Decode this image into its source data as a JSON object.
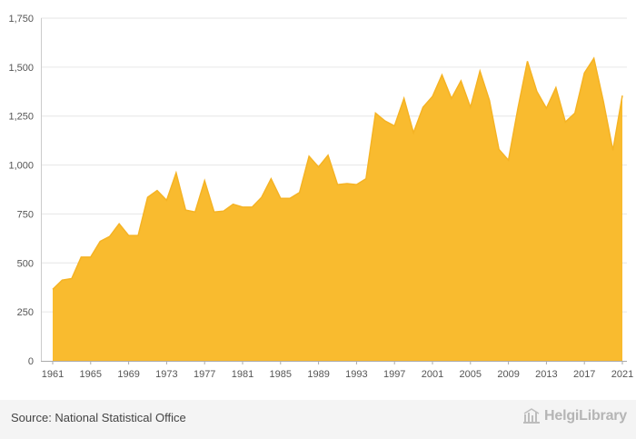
{
  "chart_data": {
    "type": "area",
    "x": [
      1961,
      1962,
      1963,
      1964,
      1965,
      1966,
      1967,
      1968,
      1969,
      1970,
      1971,
      1972,
      1973,
      1974,
      1975,
      1976,
      1977,
      1978,
      1979,
      1980,
      1981,
      1982,
      1983,
      1984,
      1985,
      1986,
      1987,
      1988,
      1989,
      1990,
      1991,
      1992,
      1993,
      1994,
      1995,
      1996,
      1997,
      1998,
      1999,
      2000,
      2001,
      2002,
      2003,
      2004,
      2005,
      2006,
      2007,
      2008,
      2009,
      2010,
      2011,
      2012,
      2013,
      2014,
      2015,
      2016,
      2017,
      2018,
      2019,
      2020,
      2021
    ],
    "values": [
      365,
      412,
      420,
      530,
      530,
      610,
      635,
      700,
      640,
      640,
      835,
      870,
      820,
      960,
      770,
      760,
      920,
      760,
      765,
      800,
      785,
      785,
      835,
      930,
      830,
      830,
      860,
      1045,
      990,
      1050,
      900,
      905,
      900,
      930,
      1265,
      1225,
      1200,
      1340,
      1165,
      1295,
      1350,
      1460,
      1340,
      1430,
      1295,
      1480,
      1330,
      1080,
      1025,
      1290,
      1530,
      1375,
      1290,
      1395,
      1220,
      1265,
      1470,
      1545,
      1325,
      1075,
      1355
    ],
    "ylim": [
      0,
      1750
    ],
    "yticks": [
      "0",
      "250",
      "500",
      "750",
      "1,000",
      "1,250",
      "1,500",
      "1,750"
    ],
    "ytick_values": [
      0,
      250,
      500,
      750,
      1000,
      1250,
      1500,
      1750
    ],
    "xticks": [
      "1961",
      "1965",
      "1969",
      "1973",
      "1977",
      "1981",
      "1985",
      "1989",
      "1993",
      "1997",
      "2001",
      "2005",
      "2009",
      "2013",
      "2017",
      "2021"
    ],
    "color": "#f9bb2f",
    "stroke": "#f5b324",
    "grid": true
  },
  "footer": {
    "source": "Source: National Statistical Office",
    "brand": "HelgiLibrary"
  }
}
